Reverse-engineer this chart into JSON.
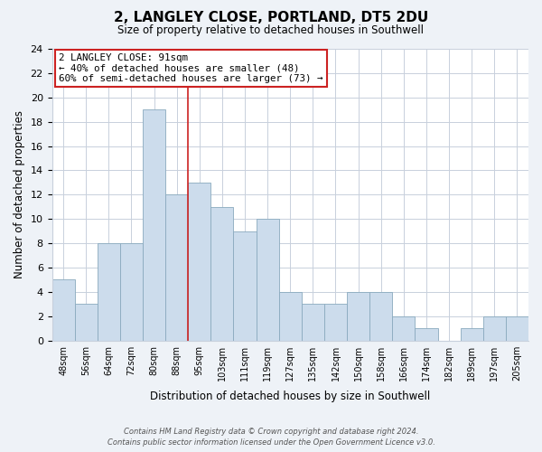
{
  "title": "2, LANGLEY CLOSE, PORTLAND, DT5 2DU",
  "subtitle": "Size of property relative to detached houses in Southwell",
  "xlabel": "Distribution of detached houses by size in Southwell",
  "ylabel": "Number of detached properties",
  "categories": [
    "48sqm",
    "56sqm",
    "64sqm",
    "72sqm",
    "80sqm",
    "88sqm",
    "95sqm",
    "103sqm",
    "111sqm",
    "119sqm",
    "127sqm",
    "135sqm",
    "142sqm",
    "150sqm",
    "158sqm",
    "166sqm",
    "174sqm",
    "182sqm",
    "189sqm",
    "197sqm",
    "205sqm"
  ],
  "values": [
    5,
    3,
    8,
    8,
    19,
    12,
    13,
    11,
    9,
    10,
    4,
    3,
    3,
    4,
    4,
    2,
    1,
    0,
    1,
    2,
    2
  ],
  "bar_color": "#ccdcec",
  "bar_edge_color": "#8aaabe",
  "reference_line_color": "#cc2222",
  "reference_line_x": 5.5,
  "annotation_title": "2 LANGLEY CLOSE: 91sqm",
  "annotation_line1": "← 40% of detached houses are smaller (48)",
  "annotation_line2": "60% of semi-detached houses are larger (73) →",
  "annotation_box_color": "#ffffff",
  "annotation_box_edge": "#cc2222",
  "ylim": [
    0,
    24
  ],
  "yticks": [
    0,
    2,
    4,
    6,
    8,
    10,
    12,
    14,
    16,
    18,
    20,
    22,
    24
  ],
  "footer1": "Contains HM Land Registry data © Crown copyright and database right 2024.",
  "footer2": "Contains public sector information licensed under the Open Government Licence v3.0.",
  "bg_color": "#eef2f7",
  "plot_bg": "#ffffff",
  "grid_color": "#c8d0dc"
}
